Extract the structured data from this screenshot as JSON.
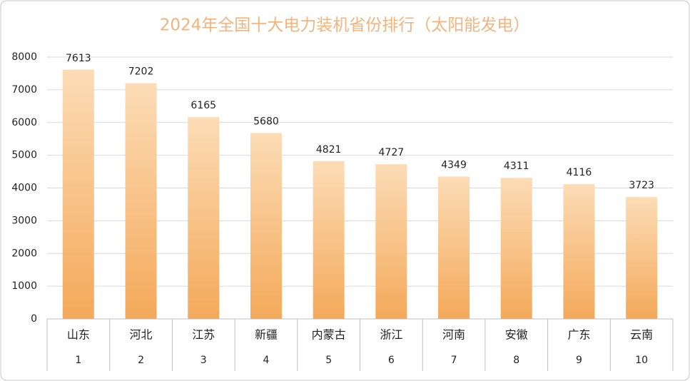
{
  "chart_data": {
    "type": "bar",
    "title": "2024年全国十大电力装机省份排行（太阳能发电）",
    "categories": [
      "山东",
      "河北",
      "江苏",
      "新疆",
      "内蒙古",
      "浙江",
      "河南",
      "安徽",
      "广东",
      "云南"
    ],
    "ranks": [
      1,
      2,
      3,
      4,
      5,
      6,
      7,
      8,
      9,
      10
    ],
    "values": [
      7613,
      7202,
      6165,
      5680,
      4821,
      4727,
      4349,
      4311,
      4116,
      3723
    ],
    "color": "#f4a95a",
    "ylim": [
      0,
      8000
    ],
    "yticks": [
      0,
      1000,
      2000,
      3000,
      4000,
      5000,
      6000,
      7000,
      8000
    ],
    "grid": true
  }
}
